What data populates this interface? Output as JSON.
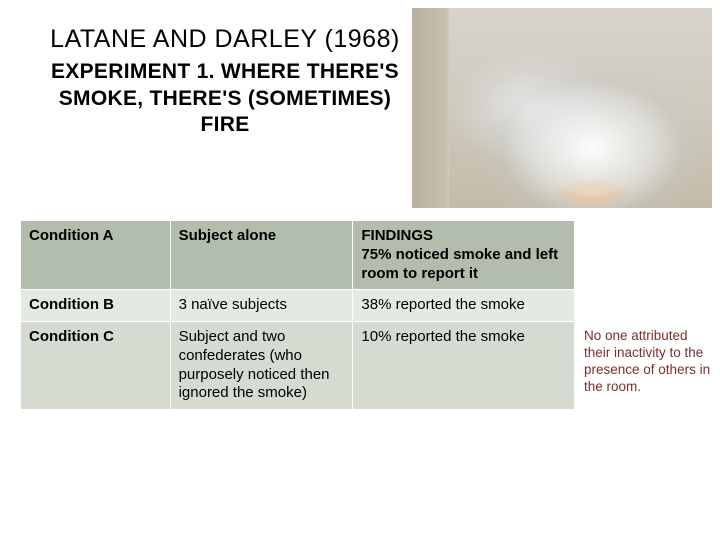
{
  "title": {
    "line1": "LATANE AND DARLEY (1968)",
    "line2": "EXPERIMENT 1. WHERE THERE'S SMOKE, THERE'S (SOMETIMES) FIRE"
  },
  "table": {
    "header_bg": "#b2bdae",
    "row_bg_alt": "#e5e9e3",
    "row_bg": "#d5dbd1",
    "border_color": "#ffffff",
    "rows": [
      {
        "condition": "Condition A",
        "subject": "Subject alone",
        "findings_label": "FINDINGS",
        "findings": "75% noticed smoke and left room to report it"
      },
      {
        "condition": "Condition B",
        "subject": "3 naïve subjects",
        "findings_label": "",
        "findings": "38% reported the smoke"
      },
      {
        "condition": "Condition C",
        "subject": "Subject and two confederates (who purposely noticed then ignored the smoke)",
        "findings_label": "",
        "findings": "10% reported the smoke"
      }
    ]
  },
  "sidenote": {
    "text": "No one attributed their inactivity to the presence of others in the room.",
    "color": "#7a2e2e"
  }
}
